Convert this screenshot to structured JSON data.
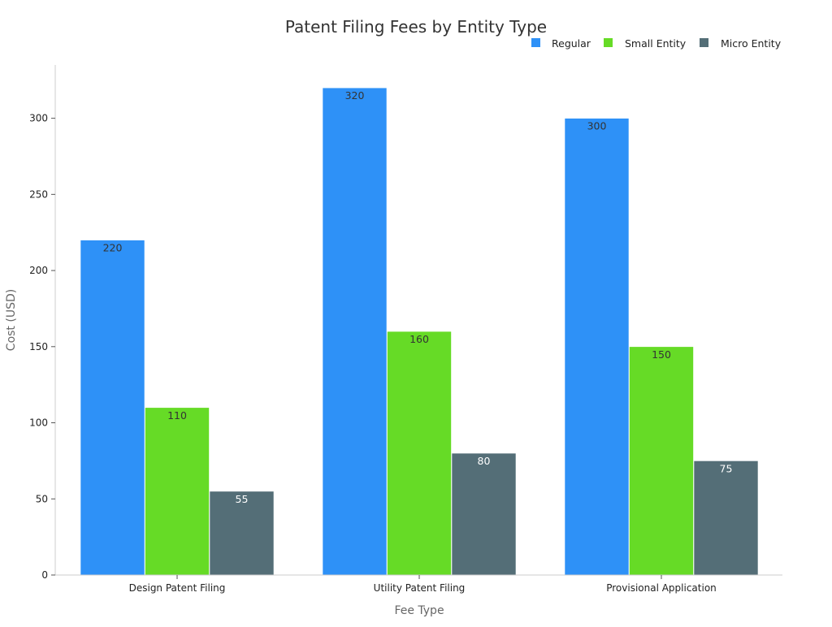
{
  "chart_data": {
    "type": "bar",
    "title": "Patent Filing Fees by Entity Type",
    "xlabel": "Fee Type",
    "ylabel": "Cost (USD)",
    "categories": [
      "Design Patent Filing",
      "Utility Patent Filing",
      "Provisional Application"
    ],
    "series": [
      {
        "name": "Regular",
        "values": [
          220,
          320,
          300
        ],
        "color": "#2e91f7",
        "label_color": "#333333"
      },
      {
        "name": "Small Entity",
        "values": [
          110,
          160,
          150
        ],
        "color": "#66db26",
        "label_color": "#333333"
      },
      {
        "name": "Micro Entity",
        "values": [
          55,
          80,
          75
        ],
        "color": "#546e77",
        "label_color": "#ffffff"
      }
    ],
    "ylim": [
      0,
      335
    ],
    "yticks": [
      0,
      50,
      100,
      150,
      200,
      250,
      300
    ],
    "grid": false,
    "legend_position": "top-right",
    "show_data_labels": true
  }
}
